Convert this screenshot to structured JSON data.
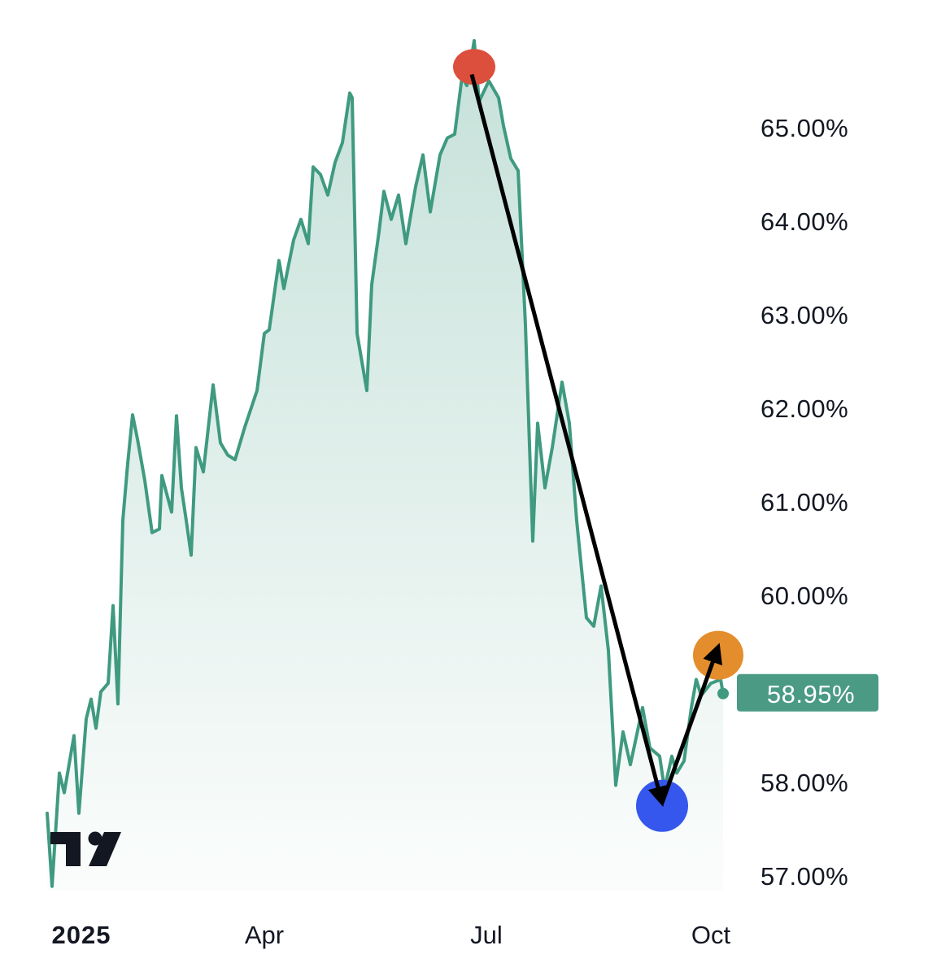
{
  "chart_data": {
    "type": "area",
    "title": "",
    "xlabel": "",
    "ylabel": "",
    "x_axis": "date",
    "xlim": [
      "2025-01-01",
      "2025-10-15"
    ],
    "ylim": [
      56.84,
      66.37
    ],
    "grid": false,
    "y_axis_side": "right",
    "x_ticks": [
      {
        "date": "2025-01-16",
        "label": "2025",
        "bold": true
      },
      {
        "date": "2025-04-01",
        "label": "Apr"
      },
      {
        "date": "2025-07-01",
        "label": "Jul"
      },
      {
        "date": "2025-10-01",
        "label": "Oct"
      }
    ],
    "y_ticks": [
      {
        "value": 65,
        "label": "65.00%"
      },
      {
        "value": 64,
        "label": "64.00%"
      },
      {
        "value": 63,
        "label": "63.00%"
      },
      {
        "value": 62,
        "label": "62.00%"
      },
      {
        "value": 61,
        "label": "61.00%"
      },
      {
        "value": 60,
        "label": "60.00%"
      },
      {
        "value": 58,
        "label": "58.00%"
      },
      {
        "value": 57,
        "label": "57.00%"
      }
    ],
    "last_value": {
      "value": 58.95,
      "label": "58.95%"
    },
    "colors": {
      "line": "#3f9a80",
      "fill": "#3f9a80",
      "tag": "#4a9a84",
      "text": "#131722"
    },
    "series": [
      {
        "x": [
          "2025-01-02",
          "2025-01-04",
          "2025-01-07",
          "2025-01-09",
          "2025-01-13",
          "2025-01-15",
          "2025-01-18",
          "2025-01-20",
          "2025-01-22",
          "2025-01-24",
          "2025-01-27",
          "2025-01-29",
          "2025-01-31",
          "2025-02-02",
          "2025-02-04",
          "2025-02-06",
          "2025-02-08",
          "2025-02-11",
          "2025-02-14",
          "2025-02-17",
          "2025-02-18",
          "2025-02-22",
          "2025-02-24",
          "2025-02-26",
          "2025-02-28",
          "2025-03-02",
          "2025-03-04",
          "2025-03-07",
          "2025-03-11",
          "2025-03-14",
          "2025-03-17",
          "2025-03-20",
          "2025-03-24",
          "2025-03-29",
          "2025-04-01",
          "2025-04-03",
          "2025-04-07",
          "2025-04-09",
          "2025-04-13",
          "2025-04-16",
          "2025-04-19",
          "2025-04-21",
          "2025-04-24",
          "2025-04-27",
          "2025-04-30",
          "2025-05-03",
          "2025-05-06",
          "2025-05-07",
          "2025-05-09",
          "2025-05-13",
          "2025-05-15",
          "2025-05-18",
          "2025-05-20",
          "2025-05-23",
          "2025-05-26",
          "2025-05-29",
          "2025-06-02",
          "2025-06-05",
          "2025-06-08",
          "2025-06-12",
          "2025-06-15",
          "2025-06-18",
          "2025-06-21",
          "2025-06-23",
          "2025-06-26",
          "2025-06-28",
          "2025-07-02",
          "2025-07-06",
          "2025-07-08",
          "2025-07-11",
          "2025-07-14",
          "2025-07-17",
          "2025-07-20",
          "2025-07-22",
          "2025-07-25",
          "2025-07-28",
          "2025-08-01",
          "2025-08-04",
          "2025-08-07",
          "2025-08-11",
          "2025-08-14",
          "2025-08-17",
          "2025-08-20",
          "2025-08-23",
          "2025-08-26",
          "2025-08-29",
          "2025-09-03",
          "2025-09-06",
          "2025-09-10",
          "2025-09-12",
          "2025-09-15",
          "2025-09-17",
          "2025-09-20",
          "2025-09-23",
          "2025-09-25",
          "2025-09-27",
          "2025-10-01",
          "2025-10-05",
          "2025-10-06"
        ],
        "values": [
          57.67,
          56.89,
          58.1,
          57.89,
          58.5,
          57.67,
          58.68,
          58.89,
          58.58,
          58.97,
          59.06,
          59.89,
          58.84,
          60.8,
          61.41,
          61.93,
          61.67,
          61.23,
          60.67,
          60.71,
          61.28,
          60.89,
          61.92,
          61.15,
          60.8,
          60.43,
          61.58,
          61.32,
          62.25,
          61.63,
          61.5,
          61.45,
          61.8,
          62.19,
          62.8,
          62.84,
          63.58,
          63.28,
          63.8,
          64.02,
          63.76,
          64.58,
          64.5,
          64.28,
          64.63,
          64.84,
          65.37,
          65.32,
          62.8,
          62.19,
          63.32,
          63.89,
          64.32,
          64.02,
          64.28,
          63.76,
          64.37,
          64.71,
          64.1,
          64.71,
          64.89,
          64.93,
          65.54,
          65.45,
          65.93,
          65.28,
          65.5,
          65.32,
          65.02,
          64.67,
          64.54,
          62.89,
          60.58,
          61.84,
          61.15,
          61.58,
          62.28,
          61.84,
          60.8,
          59.76,
          59.67,
          60.1,
          59.41,
          57.97,
          58.54,
          58.19,
          58.8,
          58.37,
          58.28,
          57.93,
          58.28,
          58.1,
          58.23,
          58.8,
          59.1,
          58.93,
          59.06,
          59.1,
          58.95
        ]
      }
    ],
    "annotations": {
      "markers": [
        {
          "date": "2025-06-26",
          "value": 65.65,
          "color": "#dc4f3c"
        },
        {
          "date": "2025-09-11",
          "value": 57.75,
          "color": "#3557ee"
        },
        {
          "date": "2025-10-04",
          "value": 59.36,
          "color": "#e48d2c"
        }
      ],
      "arrows": [
        {
          "from": {
            "date": "2025-06-25",
            "value": 65.57
          },
          "to": {
            "date": "2025-09-11",
            "value": 57.78
          },
          "color": "#000000"
        },
        {
          "from": {
            "date": "2025-09-11",
            "value": 57.78
          },
          "to": {
            "date": "2025-10-04",
            "value": 59.45
          },
          "color": "#000000"
        }
      ]
    },
    "logo": "TV"
  }
}
